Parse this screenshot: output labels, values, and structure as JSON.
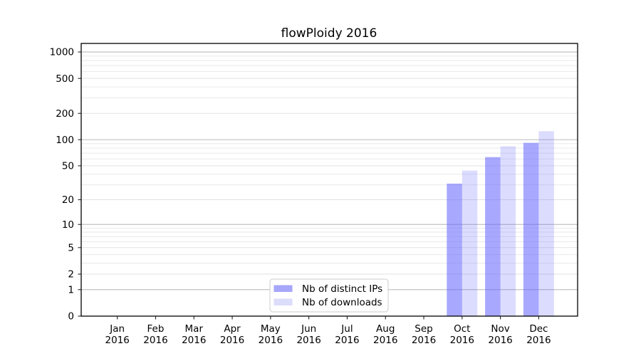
{
  "title": "flowPloidy 2016",
  "colors": {
    "bar_base": "#6666ff",
    "bar_alpha_ips": 0.57,
    "bar_alpha_downloads": 0.23,
    "swatch_ips": "#a6a6fa",
    "swatch_downloads": "#dcdcfb",
    "grid_decade": "#c2c2c2",
    "grid_minor": "#e9e9e9",
    "grid_labeled": "#e2e2e2",
    "spine": "#000000",
    "legend_border": "#cccccc"
  },
  "legend": {
    "items": [
      {
        "label": "Nb of distinct IPs"
      },
      {
        "label": "Nb of downloads"
      }
    ]
  },
  "chart_data": {
    "type": "bar",
    "title": "flowPloidy 2016",
    "categories": [
      "Jan 2016",
      "Feb 2016",
      "Mar 2016",
      "Apr 2016",
      "May 2016",
      "Jun 2016",
      "Jul 2016",
      "Aug 2016",
      "Sep 2016",
      "Oct 2016",
      "Nov 2016",
      "Dec 2016"
    ],
    "series": [
      {
        "name": "Nb of distinct IPs",
        "values": [
          0,
          0,
          0,
          0,
          0,
          0,
          0,
          0,
          0,
          31,
          63,
          92
        ]
      },
      {
        "name": "Nb of downloads",
        "values": [
          0,
          0,
          0,
          0,
          0,
          0,
          0,
          0,
          0,
          44,
          84,
          125
        ]
      }
    ],
    "xlabel": "",
    "ylabel": "",
    "yscale": "log1p",
    "yticks": [
      0,
      1,
      2,
      5,
      10,
      20,
      50,
      100,
      200,
      500,
      1000
    ],
    "ylim": [
      0,
      1250
    ],
    "grid": true,
    "legend_position": "lower center"
  }
}
